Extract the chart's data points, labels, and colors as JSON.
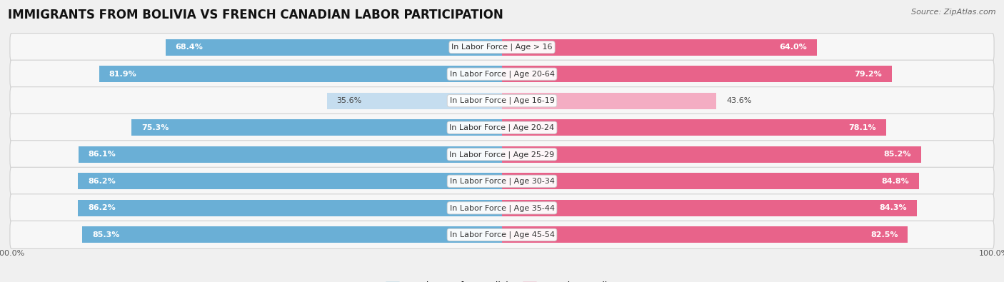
{
  "title": "IMMIGRANTS FROM BOLIVIA VS FRENCH CANADIAN LABOR PARTICIPATION",
  "source": "Source: ZipAtlas.com",
  "categories": [
    "In Labor Force | Age > 16",
    "In Labor Force | Age 20-64",
    "In Labor Force | Age 16-19",
    "In Labor Force | Age 20-24",
    "In Labor Force | Age 25-29",
    "In Labor Force | Age 30-34",
    "In Labor Force | Age 35-44",
    "In Labor Force | Age 45-54"
  ],
  "bolivia_values": [
    68.4,
    81.9,
    35.6,
    75.3,
    86.1,
    86.2,
    86.2,
    85.3
  ],
  "french_values": [
    64.0,
    79.2,
    43.6,
    78.1,
    85.2,
    84.8,
    84.3,
    82.5
  ],
  "bolivia_color_full": "#6aafd6",
  "bolivia_color_light": "#c5ddef",
  "french_color_full": "#e8638a",
  "french_color_light": "#f4adc3",
  "background_color": "#f0f0f0",
  "row_bg_color": "#f7f7f7",
  "title_fontsize": 12,
  "label_fontsize": 8,
  "value_fontsize": 8,
  "legend_fontsize": 9,
  "source_fontsize": 8,
  "light_threshold": 60
}
